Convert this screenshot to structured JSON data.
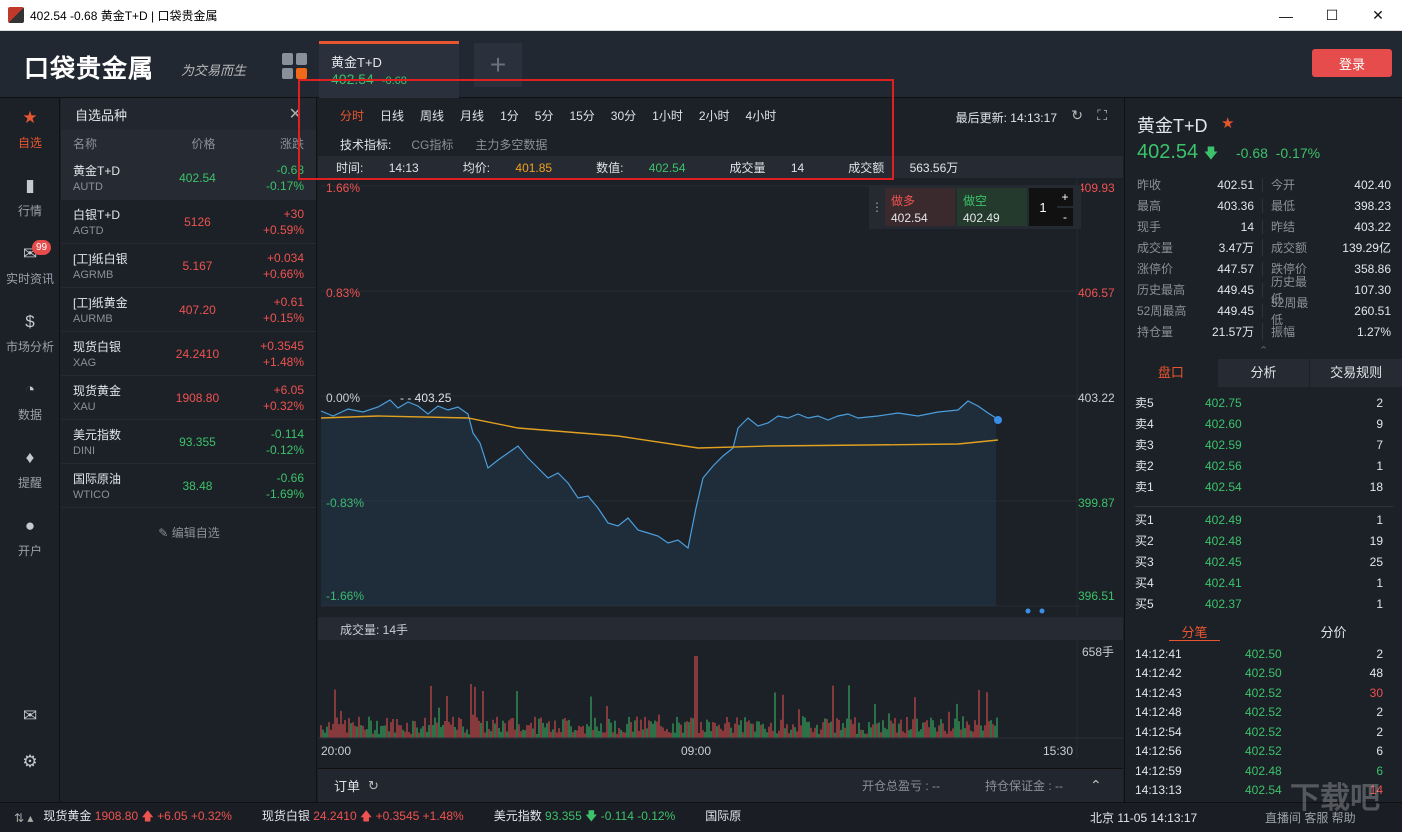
{
  "window": {
    "title": "402.54 -0.68 黄金T+D | 口袋贵金属"
  },
  "header": {
    "logo": "口袋贵金属",
    "slogan": "为交易而生",
    "login_label": "登录",
    "tab": {
      "name": "黄金T+D",
      "price": "402.54",
      "change": "-0.68"
    }
  },
  "nav": [
    {
      "label": "自选",
      "icon": "star-icon"
    },
    {
      "label": "行情",
      "icon": "bar-chart-icon"
    },
    {
      "label": "实时资讯",
      "icon": "chat-icon",
      "badge": "99"
    },
    {
      "label": "市场分析",
      "icon": "money-icon"
    },
    {
      "label": "数据",
      "icon": "pie-icon"
    },
    {
      "label": "提醒",
      "icon": "bell-icon"
    },
    {
      "label": "开户",
      "icon": "user-icon"
    }
  ],
  "watchlist": {
    "title": "自选品种",
    "cols": {
      "name": "名称",
      "price": "价格",
      "change": "涨跌"
    },
    "items": [
      {
        "name": "黄金T+D",
        "code": "AUTD",
        "price": "402.54",
        "chg": "-0.68",
        "pct": "-0.17%",
        "dir": "green"
      },
      {
        "name": "白银T+D",
        "code": "AGTD",
        "price": "5126",
        "chg": "+30",
        "pct": "+0.59%",
        "dir": "red"
      },
      {
        "name": "[工]纸白银",
        "code": "AGRMB",
        "price": "5.167",
        "chg": "+0.034",
        "pct": "+0.66%",
        "dir": "red"
      },
      {
        "name": "[工]纸黄金",
        "code": "AURMB",
        "price": "407.20",
        "chg": "+0.61",
        "pct": "+0.15%",
        "dir": "red"
      },
      {
        "name": "现货白银",
        "code": "XAG",
        "price": "24.2410",
        "chg": "+0.3545",
        "pct": "+1.48%",
        "dir": "red"
      },
      {
        "name": "现货黄金",
        "code": "XAU",
        "price": "1908.80",
        "chg": "+6.05",
        "pct": "+0.32%",
        "dir": "red"
      },
      {
        "name": "美元指数",
        "code": "DINI",
        "price": "93.355",
        "chg": "-0.114",
        "pct": "-0.12%",
        "dir": "green"
      },
      {
        "name": "国际原油",
        "code": "WTICO",
        "price": "38.48",
        "chg": "-0.66",
        "pct": "-1.69%",
        "dir": "green"
      }
    ],
    "edit_label": "编辑自选"
  },
  "chart": {
    "periods": [
      "分时",
      "日线",
      "周线",
      "月线",
      "1分",
      "5分",
      "15分",
      "30分",
      "1小时",
      "2小时",
      "4小时"
    ],
    "last_update": "最后更新: 14:13:17",
    "indicator_label": "技术指标:",
    "indicators": [
      "CG指标",
      "主力多空数据"
    ],
    "info": {
      "time_k": "时间:",
      "time": "14:13",
      "avg_k": "均价:",
      "avg": "401.85",
      "val_k": "数值:",
      "val": "402.54",
      "vol_k": "成交量",
      "vol": "14",
      "amt_k": "成交额",
      "amt": "563.56万"
    },
    "trade": {
      "long_label": "做多",
      "long_price": "402.54",
      "short_label": "做空",
      "short_price": "402.49",
      "qty": "1"
    },
    "orders": {
      "title": "订单",
      "float_label": "开仓总盈亏 : --",
      "margin_label": "持仓保证金 : --"
    }
  },
  "chart_data": {
    "type": "line",
    "series": [],
    "pct_labels": [
      "1.66%",
      "0.83%",
      "0.00%",
      "-0.83%",
      "-1.66%"
    ],
    "price_labels": [
      "409.93",
      "406.57",
      "403.22",
      "399.87",
      "396.51"
    ],
    "x_labels": [
      "20:00",
      "09:00",
      "15:30"
    ],
    "high_marker": "403.25",
    "volume_label": "成交量: 14手",
    "volume_max": "658手",
    "ylim": [
      396.51,
      409.93
    ]
  },
  "quote": {
    "name": "黄金T+D",
    "price": "402.54",
    "change": "-0.68",
    "pct": "-0.17%",
    "stats": [
      [
        "昨收",
        "402.51",
        "今开",
        "402.40"
      ],
      [
        "最高",
        "403.36",
        "最低",
        "398.23"
      ],
      [
        "现手",
        "14",
        "昨结",
        "403.22"
      ],
      [
        "成交量",
        "3.47万",
        "成交额",
        "139.29亿"
      ],
      [
        "涨停价",
        "447.57",
        "跌停价",
        "358.86"
      ],
      [
        "历史最高",
        "449.45",
        "历史最低",
        "107.30"
      ],
      [
        "52周最高",
        "449.45",
        "52周最低",
        "260.51"
      ],
      [
        "持仓量",
        "21.57万",
        "振幅",
        "1.27%"
      ]
    ],
    "tabs": [
      "盘口",
      "分析",
      "交易规则"
    ],
    "asks": [
      [
        "卖5",
        "402.75",
        "2"
      ],
      [
        "卖4",
        "402.60",
        "9"
      ],
      [
        "卖3",
        "402.59",
        "7"
      ],
      [
        "卖2",
        "402.56",
        "1"
      ],
      [
        "卖1",
        "402.54",
        "18"
      ]
    ],
    "bids": [
      [
        "买1",
        "402.49",
        "1"
      ],
      [
        "买2",
        "402.48",
        "19"
      ],
      [
        "买3",
        "402.45",
        "25"
      ],
      [
        "买4",
        "402.41",
        "1"
      ],
      [
        "买5",
        "402.37",
        "1"
      ]
    ],
    "tick_tabs": [
      "分笔",
      "分价"
    ],
    "ticks": [
      [
        "14:12:41",
        "402.50",
        "2",
        "white"
      ],
      [
        "14:12:42",
        "402.50",
        "48",
        "white"
      ],
      [
        "14:12:43",
        "402.52",
        "30",
        "red"
      ],
      [
        "14:12:48",
        "402.52",
        "2",
        "white"
      ],
      [
        "14:12:54",
        "402.52",
        "2",
        "white"
      ],
      [
        "14:12:56",
        "402.52",
        "6",
        "white"
      ],
      [
        "14:12:59",
        "402.48",
        "6",
        "green"
      ],
      [
        "14:13:13",
        "402.54",
        "14",
        "red"
      ]
    ]
  },
  "statusbar": {
    "items": [
      {
        "name": "现货黄金",
        "price": "1908.80",
        "chg": "+6.05",
        "pct": "+0.32%",
        "dir": "red"
      },
      {
        "name": "现货白银",
        "price": "24.2410",
        "chg": "+0.3545",
        "pct": "+1.48%",
        "dir": "red"
      },
      {
        "name": "美元指数",
        "price": "93.355",
        "chg": "-0.114",
        "pct": "-0.12%",
        "dir": "green"
      },
      {
        "name": "国际原",
        "price": "",
        "chg": "",
        "pct": "",
        "dir": "white"
      }
    ],
    "clock": "北京  11-05 14:13:17",
    "links": "直播间  客服  帮助",
    "watermark": "下载吧"
  }
}
